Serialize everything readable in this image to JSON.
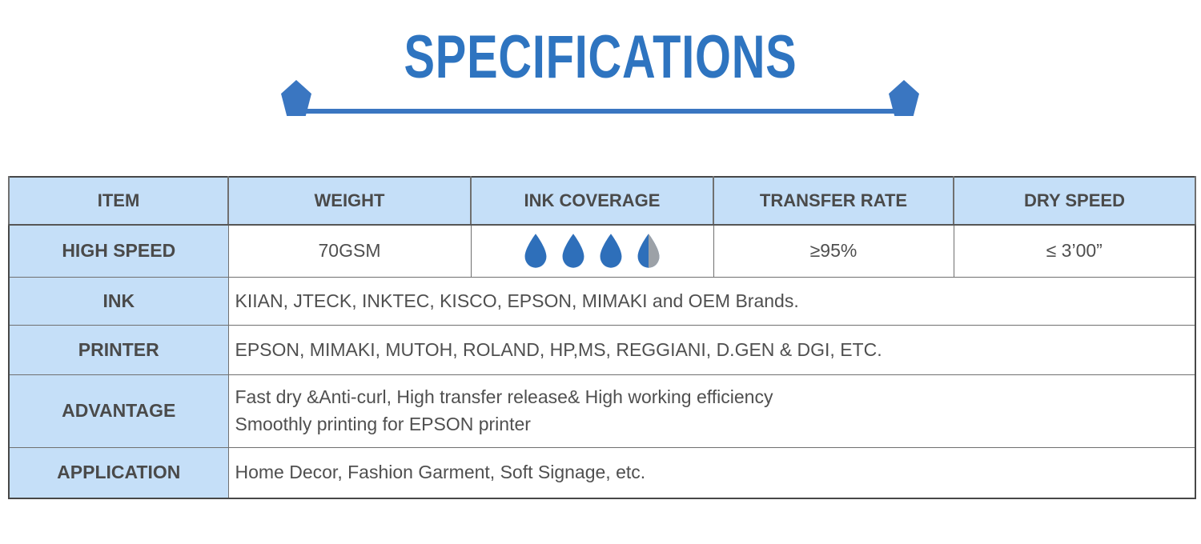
{
  "title": "SPECIFICATIONS",
  "colors": {
    "accent_blue": "#2E74C0",
    "line_blue": "#3A76C1",
    "header_bg": "#C5DFF8",
    "text_dark": "#4A4A4A",
    "body_text": "#4F4F4F",
    "drop_blue": "#2E6FBA",
    "drop_gray": "#9CA1A7",
    "border": "#707070",
    "outer_border": "#474747"
  },
  "icons": {
    "pentagon": "blue pentagon end-cap on divider line",
    "water_drop": "teardrop ink-coverage rating icon"
  },
  "table": {
    "headers": [
      "ITEM",
      "WEIGHT",
      "INK COVERAGE",
      "TRANSFER RATE",
      "DRY SPEED"
    ],
    "high_speed": {
      "item": "HIGH SPEED",
      "weight": "70GSM",
      "ink_coverage_drops": [
        "full",
        "full",
        "full",
        "half"
      ],
      "transfer_rate": "≥95%",
      "dry_speed": "≤ 3’00”"
    },
    "rows": [
      {
        "label": "INK",
        "text": "KIIAN, JTECK, INKTEC, KISCO, EPSON, MIMAKI and OEM Brands."
      },
      {
        "label": "PRINTER",
        "text": "EPSON, MIMAKI, MUTOH, ROLAND, HP,MS, REGGIANI, D.GEN & DGI, ETC."
      },
      {
        "label": "ADVANTAGE",
        "line1": "Fast dry &Anti-curl, High transfer release& High working efficiency",
        "line2": "Smoothly printing for EPSON printer"
      },
      {
        "label": "APPLICATION",
        "text": "Home Decor, Fashion Garment, Soft Signage, etc."
      }
    ]
  }
}
